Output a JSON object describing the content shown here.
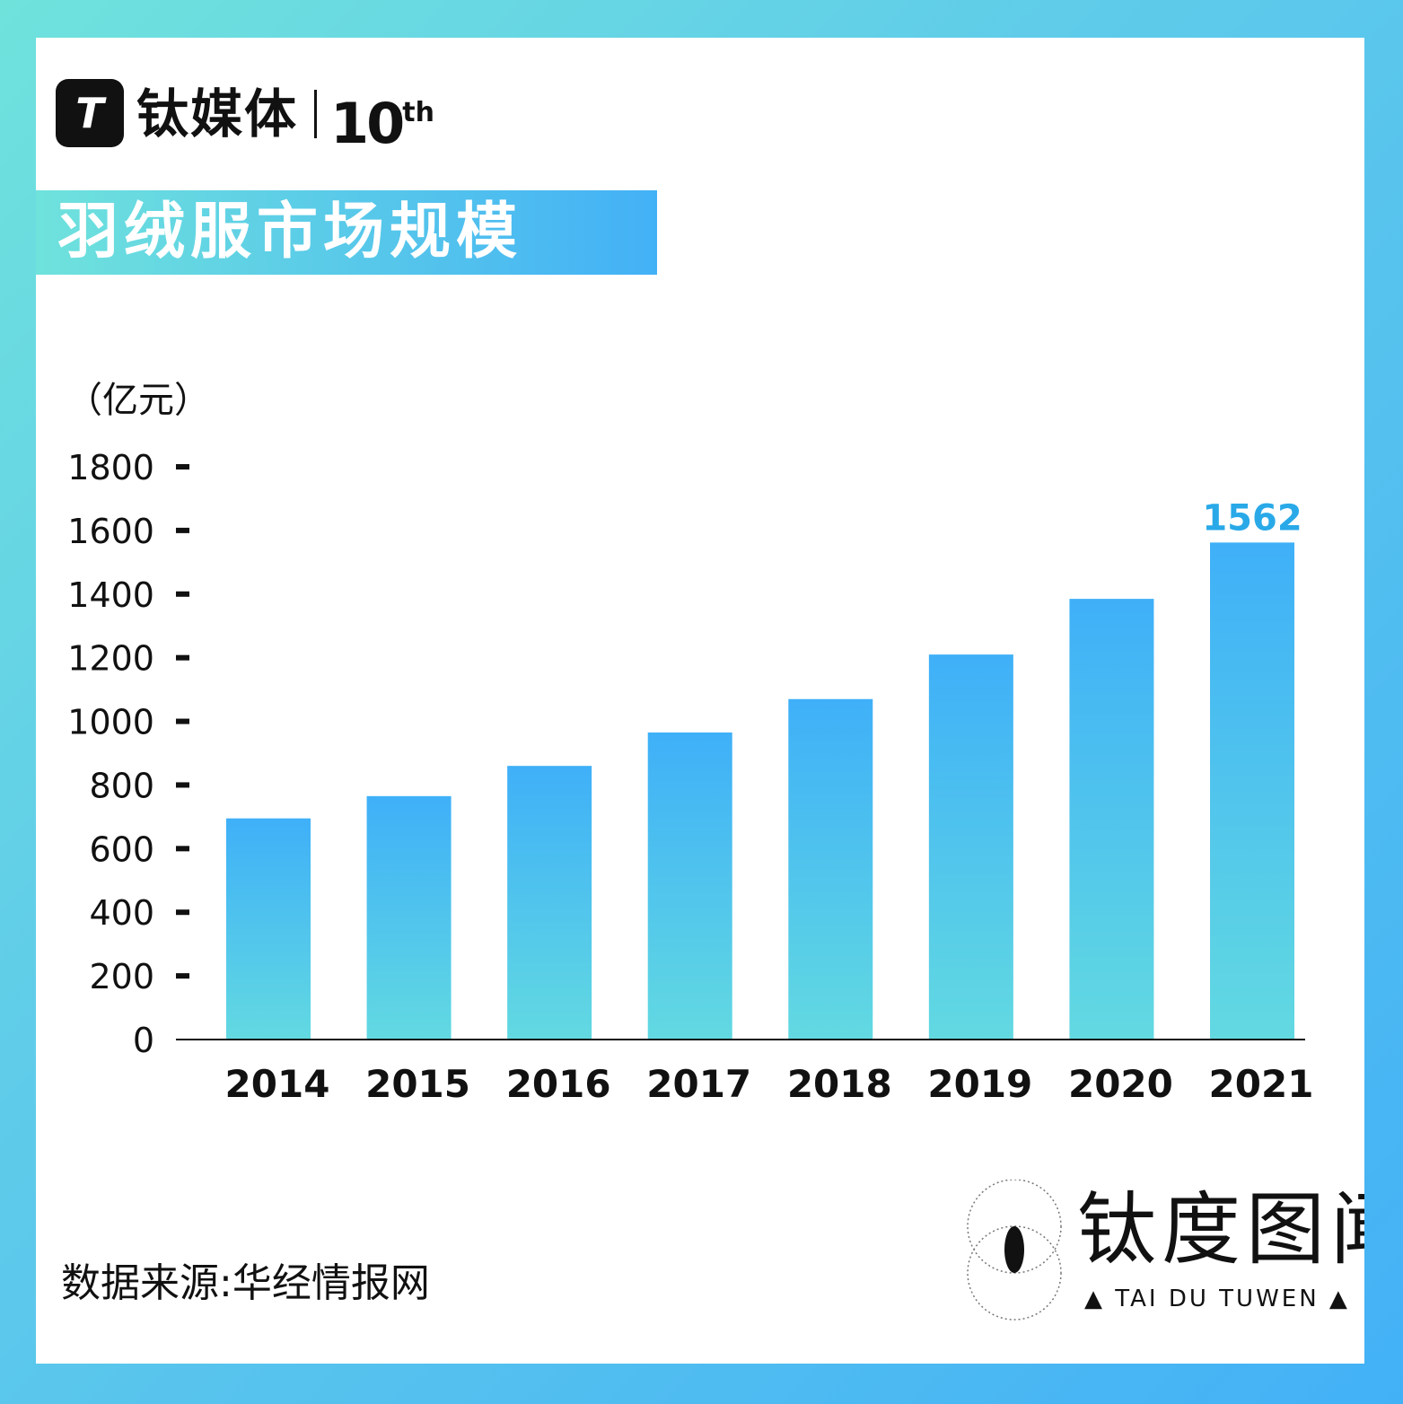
{
  "header": {
    "logo_mark": "T",
    "logo_name": "钛媒体",
    "edition_number": "10",
    "edition_suffix": "th"
  },
  "title": "羽绒服市场规模",
  "unit": "（亿元）",
  "source": "数据来源:华经情报网",
  "brand": {
    "name": "钛度图闻",
    "subtitle": "▲ TAI DU TUWEN ▲"
  },
  "colors": {
    "bar_top": "#3fb0f8",
    "bar_bottom": "#62d9e1",
    "highlight_label": "#29a9e8",
    "frame_start": "#6fe2dc",
    "frame_end": "#43b1f6"
  },
  "chart_data": {
    "type": "bar",
    "categories": [
      "2014",
      "2015",
      "2016",
      "2017",
      "2018",
      "2019",
      "2020",
      "2021"
    ],
    "values": [
      695,
      765,
      860,
      965,
      1070,
      1210,
      1385,
      1562
    ],
    "data_labels": [
      {
        "index": 7,
        "text": "1562"
      }
    ],
    "yticks": [
      0,
      200,
      400,
      600,
      800,
      1000,
      1200,
      1400,
      1600,
      1800
    ],
    "ylim": [
      0,
      1800
    ],
    "ylabel": "（亿元）",
    "xlabel": "",
    "grid": false,
    "legend": "none"
  }
}
